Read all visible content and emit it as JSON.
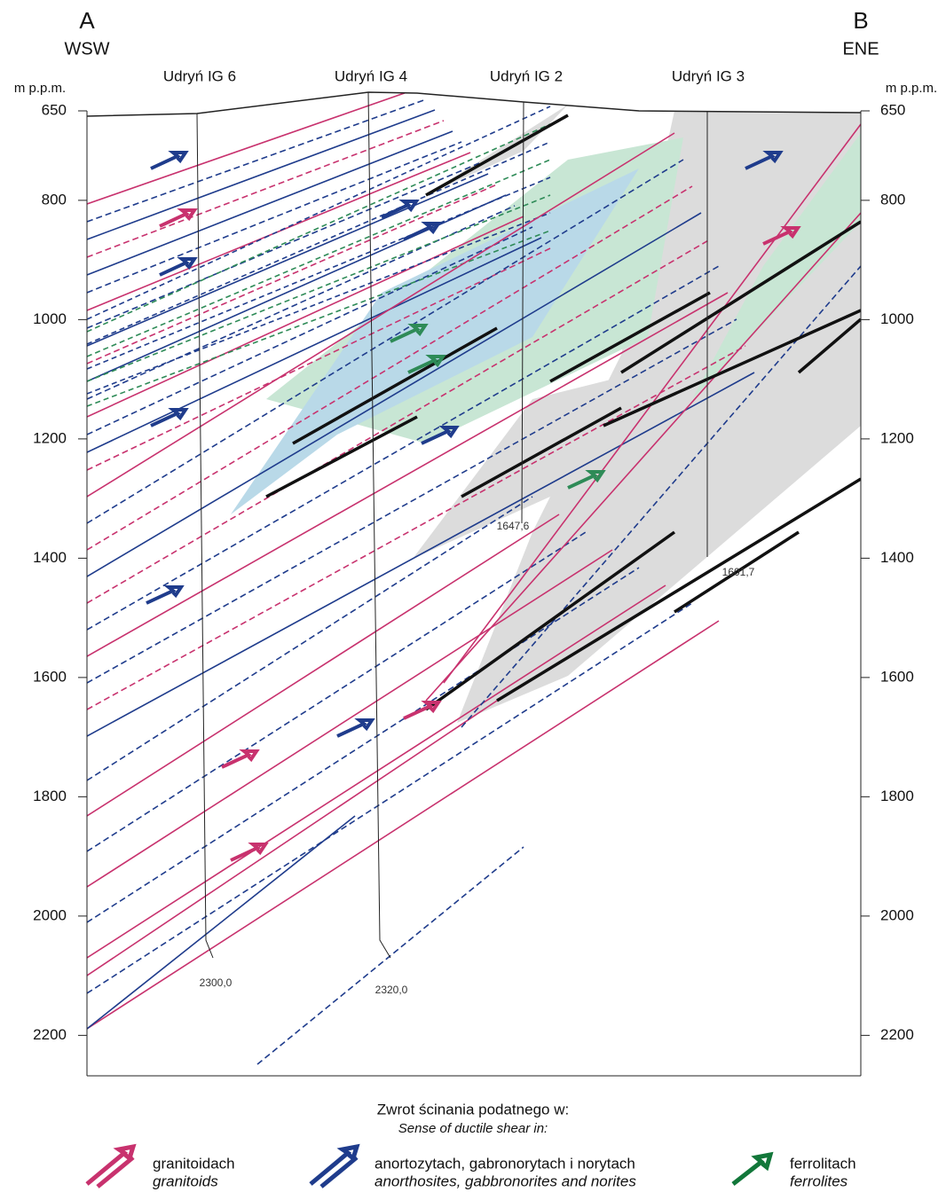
{
  "profile": {
    "start": {
      "letter": "A",
      "direction": "WSW"
    },
    "end": {
      "letter": "B",
      "direction": "ENE"
    }
  },
  "depth_axis": {
    "label": "m p.p.m.",
    "ticks": [
      650,
      800,
      1000,
      1200,
      1400,
      1600,
      1800,
      2000,
      2200
    ]
  },
  "wells": [
    {
      "name": "Udryń IG 6",
      "bottom_label": "2300,0"
    },
    {
      "name": "Udryń IG 4",
      "bottom_label": "2320,0"
    },
    {
      "name": "Udryń IG 2",
      "bottom_label": "1647,6"
    },
    {
      "name": "Udryń IG 3",
      "bottom_label": "1601,7"
    }
  ],
  "legend": {
    "title": "Zwrot ścinania podatnego w:",
    "subtitle": "Sense of ductile shear in:",
    "items": [
      {
        "label": "granitoidach",
        "translation": "granitoids"
      },
      {
        "label": "anortozytach, gabronorytach i norytach",
        "translation": "anorthosites, gabbronorites and norites"
      },
      {
        "label": "ferrolitach",
        "translation": "ferrolites"
      }
    ]
  }
}
